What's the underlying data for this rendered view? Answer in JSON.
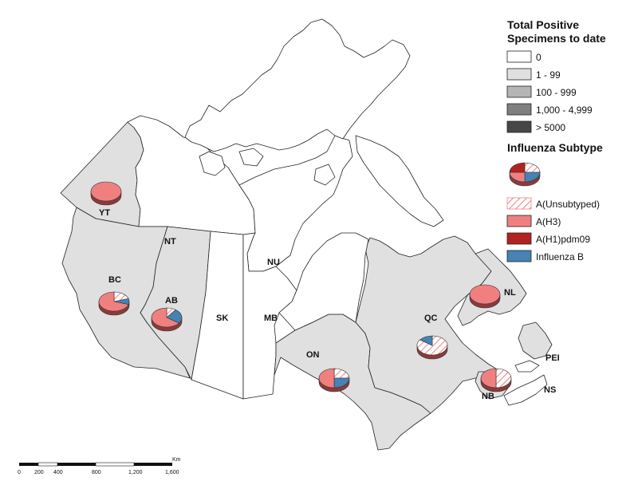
{
  "legend": {
    "title_line1": "Total Positive",
    "title_line2": "Specimens to date",
    "classes": [
      {
        "label": "0",
        "color": "#ffffff"
      },
      {
        "label": "1 - 99",
        "color": "#e0e0e0"
      },
      {
        "label": "100 - 999",
        "color": "#b5b5b5"
      },
      {
        "label": "1,000 - 4,999",
        "color": "#7f7f7f"
      },
      {
        "label": "> 5000",
        "color": "#474747"
      }
    ],
    "subtype_title": "Influenza Subtype",
    "subtypes": [
      {
        "label": "A(Unsubtyped)",
        "color": "#f08080",
        "pattern": "hatch"
      },
      {
        "label": "A(H3)",
        "color": "#f08080",
        "pattern": "solid"
      },
      {
        "label": "A(H1)pdm09",
        "color": "#b22222",
        "pattern": "solid"
      },
      {
        "label": "Influenza B",
        "color": "#4682b4",
        "pattern": "solid"
      }
    ]
  },
  "provinces": {
    "yt": "YT",
    "nt": "NT",
    "nu": "NU",
    "bc": "BC",
    "ab": "AB",
    "sk": "SK",
    "mb": "MB",
    "on": "ON",
    "qc": "QC",
    "nl": "NL",
    "nb": "NB",
    "ns": "NS",
    "pei": "PEI"
  },
  "scale": {
    "unit": "Km",
    "ticks": [
      "0",
      "200",
      "400",
      "800",
      "1,200",
      "1,600"
    ]
  },
  "pies": {
    "YT": {
      "unsubtyped": 0,
      "h3": 100,
      "h1": 0,
      "b": 0
    },
    "BC": {
      "unsubtyped": 20,
      "h3": 70,
      "h1": 0,
      "b": 10
    },
    "AB": {
      "unsubtyped": 10,
      "h3": 65,
      "h1": 0,
      "b": 25
    },
    "ON": {
      "unsubtyped": 25,
      "h3": 50,
      "h1": 0,
      "b": 25
    },
    "QC": {
      "unsubtyped": 85,
      "h3": 0,
      "h1": 0,
      "b": 15
    },
    "NL": {
      "unsubtyped": 0,
      "h3": 100,
      "h1": 0,
      "b": 0
    },
    "NB": {
      "unsubtyped": 50,
      "h3": 50,
      "h1": 0,
      "b": 0
    }
  }
}
